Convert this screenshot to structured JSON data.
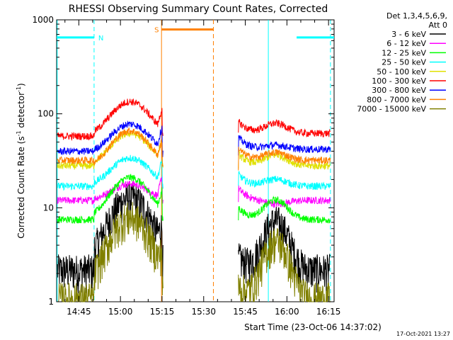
{
  "chart_data": {
    "type": "line",
    "title": "RHESSI Observing Summary Count Rates, Corrected",
    "xlabel": "Start Time (23-Oct-06 14:37:02)",
    "ylabel_main": "Corrected Count Rate (s",
    "ylabel_sup1": "-1",
    "ylabel_mid": " detector",
    "ylabel_sup2": "-1",
    "ylabel_end": ")",
    "y_scale": "log",
    "ylim": [
      1,
      1000
    ],
    "xlim_minutes": [
      0,
      100
    ],
    "x_ticks": [
      {
        "t": 8,
        "label": "14:45"
      },
      {
        "t": 23,
        "label": "15:00"
      },
      {
        "t": 38,
        "label": "15:15"
      },
      {
        "t": 53,
        "label": "15:30"
      },
      {
        "t": 68,
        "label": "15:45"
      },
      {
        "t": 83,
        "label": "16:00"
      },
      {
        "t": 98,
        "label": "16:15"
      }
    ],
    "y_ticks": [
      {
        "v": 1000,
        "label": "1000"
      },
      {
        "v": 100,
        "label": "100"
      },
      {
        "v": 10,
        "label": "10"
      },
      {
        "v": 1,
        "label": "1"
      }
    ],
    "legend_header": [
      "Det 1,3,4,5,6,9,",
      "Att 0"
    ],
    "legend_position": "right",
    "footer_timestamp": "17-Oct-2021 13:27",
    "series": [
      {
        "name": "3 - 6 keV",
        "color": "#000000",
        "a": 2.8,
        "b": 2.4,
        "peak": 13,
        "early": 2.2,
        "late": 2.2
      },
      {
        "name": "6 - 12 keV",
        "color": "#ff00ff",
        "a": 12,
        "b": 12,
        "peak": 18,
        "early": 12,
        "late": 12
      },
      {
        "name": "12 - 25 keV",
        "color": "#00ff00",
        "a": 7.5,
        "b": 7.5,
        "peak": 21,
        "early": 7.5,
        "late": 7.5
      },
      {
        "name": "25 - 50 keV",
        "color": "#00ffff",
        "a": 17,
        "b": 17,
        "peak": 34,
        "early": 17,
        "late": 17
      },
      {
        "name": "50 - 100 keV",
        "color": "#e0e000",
        "a": 28,
        "b": 28,
        "peak": 62,
        "early": 28,
        "late": 28
      },
      {
        "name": "100 - 300 keV",
        "color": "#ff0000",
        "a": 58,
        "b": 58,
        "peak": 135,
        "early": 58,
        "late": 62
      },
      {
        "name": "300 - 800 keV",
        "color": "#0000ff",
        "a": 38,
        "b": 38,
        "peak": 78,
        "early": 40,
        "late": 42
      },
      {
        "name": "800 - 7000 keV",
        "color": "#ff8000",
        "a": 27,
        "b": 27,
        "peak": 66,
        "early": 32,
        "late": 32
      },
      {
        "name": "7000 - 15000 keV",
        "color": "#808000",
        "a": 1.4,
        "b": 1.2,
        "peak": 8,
        "early": 1.1,
        "late": 1.1
      }
    ],
    "flags": [
      {
        "label": "N",
        "color": "#00ffff",
        "segments": [
          [
            0,
            13.5
          ],
          [
            86.5,
            100
          ]
        ],
        "value": 650
      },
      {
        "label": "S",
        "color": "#ff8000",
        "segments": [
          [
            37.8,
            56.5
          ]
        ],
        "value": 790
      }
    ],
    "markers": [
      {
        "t": 0.2,
        "color": "#00ffff",
        "style": "solid"
      },
      {
        "t": 13.5,
        "color": "#00ffff",
        "style": "dashed"
      },
      {
        "t": 37.8,
        "color": "#ff8000",
        "style": "solid"
      },
      {
        "t": 56.5,
        "color": "#ff8000",
        "style": "dashed"
      },
      {
        "t": 76.3,
        "color": "#00ffff",
        "style": "solid"
      },
      {
        "t": 98.7,
        "color": "#00ffff",
        "style": "dashed"
      }
    ],
    "data_gap_minutes": [
      38.5,
      65.5
    ]
  }
}
